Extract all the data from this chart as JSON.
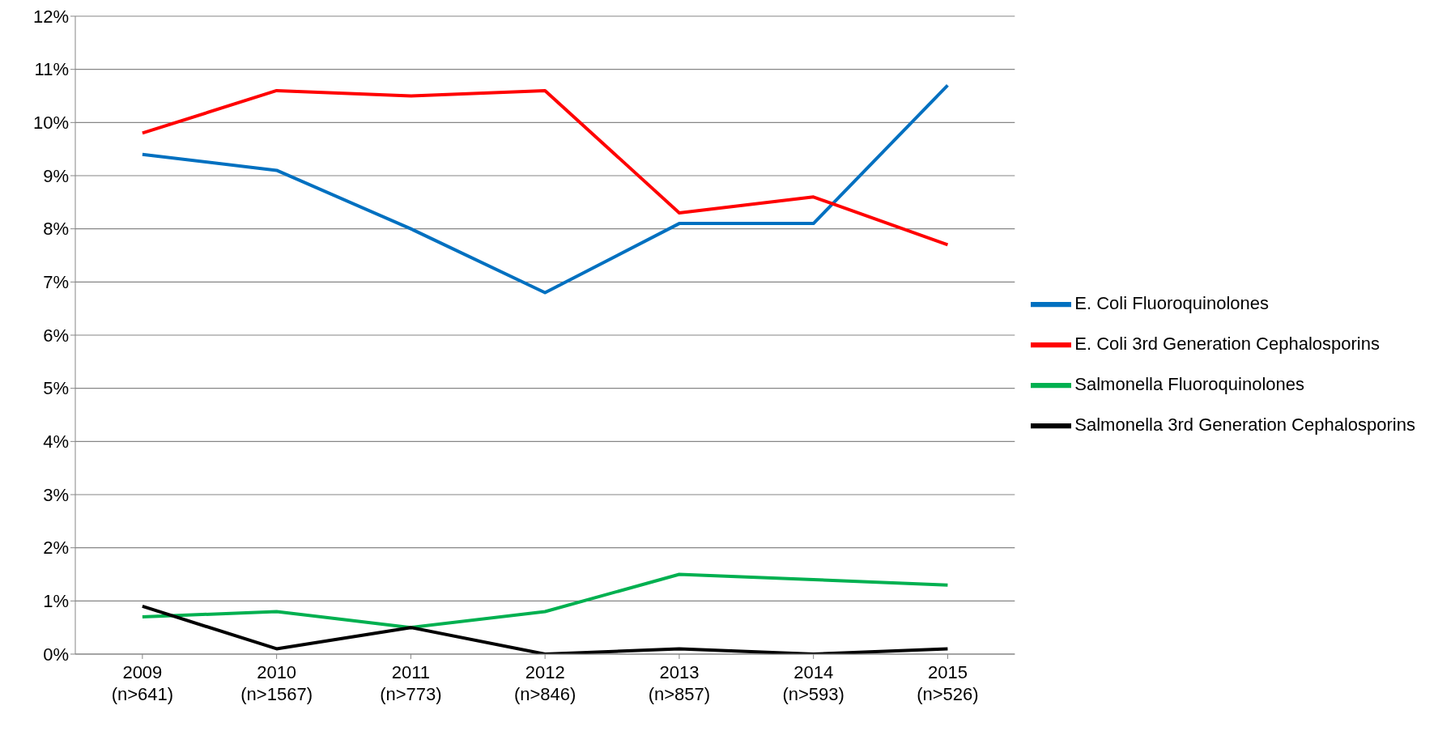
{
  "chart_data": {
    "type": "line",
    "categories": [
      "2009\n(n>641)",
      "2010\n(n>1567)",
      "2011\n(n>773)",
      "2012\n(n>846)",
      "2013\n(n>857)",
      "2014\n(n>593)",
      "2015\n(n>526)"
    ],
    "series": [
      {
        "name": "E. Coli Fluoroquinolones",
        "color": "#0070c0",
        "values": [
          9.4,
          9.1,
          8.0,
          6.8,
          8.1,
          8.1,
          10.7
        ]
      },
      {
        "name": "E. Coli 3rd Generation Cephalosporins",
        "color": "#ff0000",
        "values": [
          9.8,
          10.6,
          10.5,
          10.6,
          8.3,
          8.6,
          7.7
        ]
      },
      {
        "name": "Salmonella Fluoroquinolones",
        "color": "#00b050",
        "values": [
          0.7,
          0.8,
          0.5,
          0.8,
          1.5,
          1.4,
          1.3
        ]
      },
      {
        "name": "Salmonella 3rd Generation Cephalosporins",
        "color": "#000000",
        "values": [
          0.9,
          0.1,
          0.5,
          0.0,
          0.1,
          0.0,
          0.1
        ]
      }
    ],
    "ylim": [
      0,
      12
    ],
    "yticks": [
      {
        "value": 0,
        "label": "0%"
      },
      {
        "value": 1,
        "label": "1%"
      },
      {
        "value": 2,
        "label": "2%"
      },
      {
        "value": 3,
        "label": "3%"
      },
      {
        "value": 4,
        "label": "4%"
      },
      {
        "value": 5,
        "label": "5%"
      },
      {
        "value": 6,
        "label": "6%"
      },
      {
        "value": 7,
        "label": "7%"
      },
      {
        "value": 8,
        "label": "8%"
      },
      {
        "value": 9,
        "label": "9%"
      },
      {
        "value": 10,
        "label": "10%"
      },
      {
        "value": 11,
        "label": "11%"
      },
      {
        "value": 12,
        "label": "12%"
      }
    ],
    "grid": "y",
    "legend": "right",
    "marker": "none",
    "line_style": "solid"
  }
}
